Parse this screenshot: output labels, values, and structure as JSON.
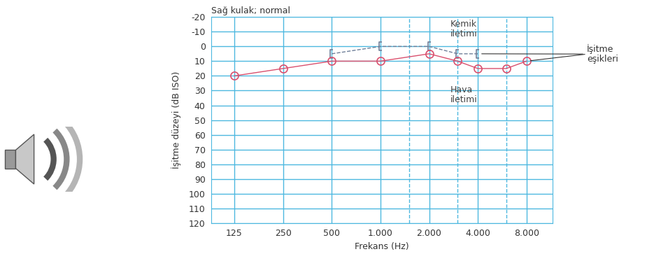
{
  "chart_data": {
    "type": "line",
    "title": "Sağ kulak; normal",
    "x_label": "Frekans (Hz)",
    "y_label": "İşitme düzeyi (dB ISO)",
    "x": [
      125,
      250,
      500,
      1000,
      2000,
      3000,
      4000,
      6000,
      8000
    ],
    "series": [
      {
        "name": "Kemik\niletimi",
        "color": "#6f7f99",
        "marker": "bracket",
        "line_style": "dashed",
        "values": [
          null,
          null,
          5,
          0,
          0,
          5,
          5,
          null,
          null
        ]
      },
      {
        "name": "Hava\niletimi",
        "color": "#d9506e",
        "marker": "circle",
        "line_style": "solid",
        "values": [
          20,
          15,
          10,
          10,
          5,
          10,
          15,
          15,
          10
        ]
      }
    ],
    "annotations": [
      "İşitme\neşikleri"
    ],
    "log": "x",
    "grid": true,
    "xlim": [
      90,
      11600
    ],
    "ylim": [
      120,
      -20
    ],
    "xticks": [
      125,
      250,
      500,
      {
        "value": 1000,
        "label": "1.000"
      },
      {
        "value": 2000,
        "label": "2.000"
      },
      {
        "value": 4000,
        "label": "4.000"
      },
      {
        "value": 8000,
        "label": "8.000"
      }
    ],
    "yticks": [
      -20,
      -10,
      0,
      10,
      20,
      30,
      40,
      50,
      60,
      70,
      80,
      90,
      100,
      110,
      120
    ]
  }
}
